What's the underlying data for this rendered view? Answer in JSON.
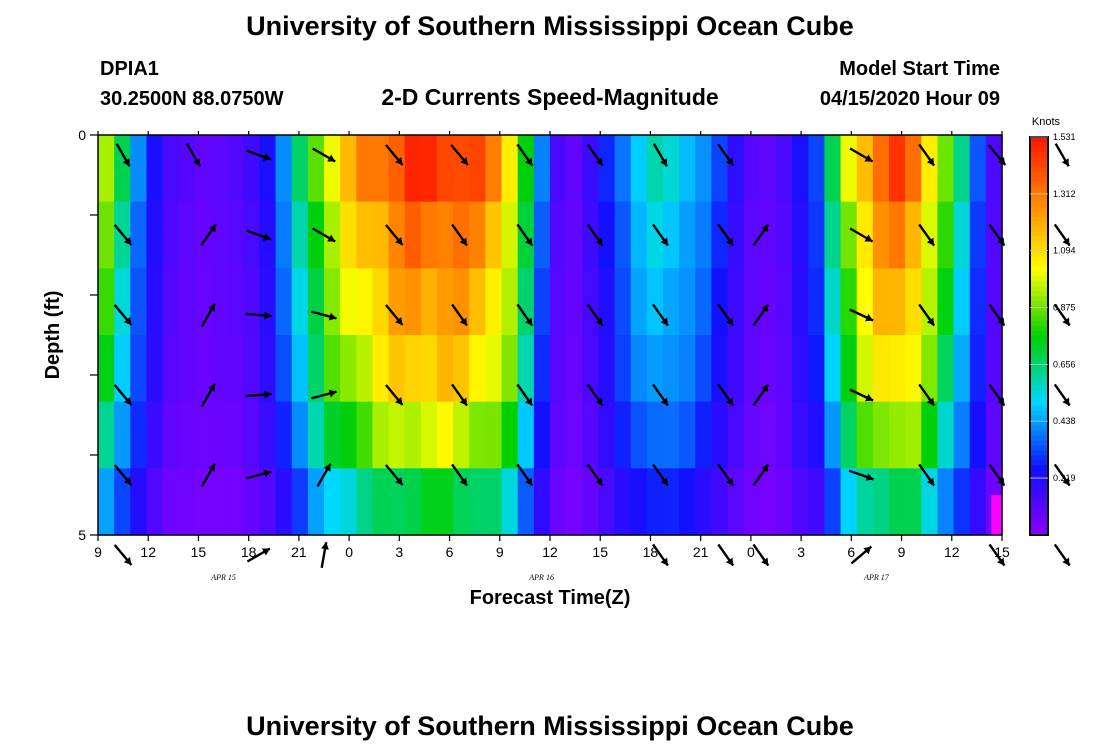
{
  "header": {
    "title": "University of Southern Mississippi Ocean Cube",
    "station_id": "DPIA1",
    "coords": "30.2500N 88.0750W",
    "subtitle": "2-D Currents Speed-Magnitude",
    "model_start_label": "Model Start Time",
    "model_start_value": "04/15/2020 Hour 09"
  },
  "footer": {
    "title": "University of Southern Mississippi Ocean Cube"
  },
  "colors": {
    "scale": [
      "#8a00ff",
      "#1010ff",
      "#00d8ff",
      "#00d000",
      "#ffff00",
      "#ff8800",
      "#ff1500"
    ],
    "max_marker": "#ff00ff",
    "arrow": "#000000"
  },
  "chart_data": {
    "type": "heatmap",
    "title": "2-D Currents Speed-Magnitude",
    "xlabel": "Forecast Time(Z)",
    "ylabel": "Depth (ft)",
    "x_ticks": [
      "9",
      "12",
      "15",
      "18",
      "21",
      "0",
      "3",
      "6",
      "9",
      "12",
      "15",
      "18",
      "21",
      "0",
      "3",
      "6",
      "9",
      "12",
      "15"
    ],
    "x_range_hours": [
      0,
      54
    ],
    "y_ticks": [
      "0",
      "5"
    ],
    "y_range": [
      0,
      5
    ],
    "date_labels": [
      {
        "text": "APR  15",
        "hour": 7.5
      },
      {
        "text": "APR  16",
        "hour": 26.5
      },
      {
        "text": "APR  17",
        "hour": 46.5
      }
    ],
    "colorbar": {
      "units": "Knots",
      "min": 0.0,
      "max": 1.531,
      "ticks": [
        "1.531",
        "1.312",
        "1.094",
        "0.875",
        "0.656",
        "0.438",
        "0.219"
      ]
    },
    "speed_profile": [
      0.85,
      0.6,
      0.38,
      0.22,
      0.12,
      0.1,
      0.08,
      0.09,
      0.1,
      0.14,
      0.22,
      0.38,
      0.58,
      0.78,
      0.95,
      1.05,
      1.15,
      1.22,
      1.28,
      1.32,
      1.33,
      1.34,
      1.3,
      1.25,
      1.18,
      1.0,
      0.68,
      0.35,
      0.12,
      0.08,
      0.15,
      0.25,
      0.36,
      0.46,
      0.52,
      0.5,
      0.45,
      0.38,
      0.28,
      0.18,
      0.1,
      0.08,
      0.12,
      0.22,
      0.3,
      0.6,
      0.9,
      1.1,
      1.22,
      1.28,
      1.22,
      1.0,
      0.78,
      0.55,
      0.32,
      0.12
    ],
    "depth_factors": [
      1.1,
      1.0,
      0.93,
      0.86,
      0.74,
      0.54
    ],
    "arrows": [
      [
        [
          0.3,
          0.3,
          300
        ],
        [
          1.7,
          0.3,
          300
        ],
        [
          3.0,
          0.3,
          340
        ],
        [
          4.3,
          0.3,
          330
        ],
        [
          5.7,
          0.3,
          310
        ],
        [
          7.0,
          0.3,
          310
        ],
        [
          8.3,
          0.3,
          305
        ],
        [
          9.7,
          0.3,
          305
        ],
        [
          11.0,
          0.3,
          300
        ],
        [
          12.3,
          0.3,
          305
        ],
        [
          15.0,
          0.3,
          330
        ],
        [
          16.3,
          0.3,
          305
        ],
        [
          17.7,
          0.3,
          310
        ],
        [
          19.0,
          0.3,
          300
        ]
      ],
      [
        [
          0.3,
          1.3,
          310
        ],
        [
          2.0,
          1.3,
          55
        ],
        [
          3.0,
          1.3,
          340
        ],
        [
          4.3,
          1.3,
          330
        ],
        [
          5.7,
          1.3,
          310
        ],
        [
          7.0,
          1.3,
          305
        ],
        [
          8.3,
          1.3,
          305
        ],
        [
          9.7,
          1.3,
          305
        ],
        [
          11.0,
          1.3,
          305
        ],
        [
          12.3,
          1.3,
          305
        ],
        [
          13.0,
          1.3,
          55
        ],
        [
          15.0,
          1.3,
          330
        ],
        [
          16.3,
          1.3,
          305
        ],
        [
          17.7,
          1.3,
          305
        ],
        [
          19.0,
          1.3,
          305
        ]
      ],
      [
        [
          0.3,
          2.3,
          310
        ],
        [
          2.0,
          2.3,
          60
        ],
        [
          3.0,
          2.3,
          355
        ],
        [
          4.3,
          2.3,
          345
        ],
        [
          5.7,
          2.3,
          310
        ],
        [
          7.0,
          2.3,
          305
        ],
        [
          8.3,
          2.3,
          305
        ],
        [
          9.7,
          2.3,
          305
        ],
        [
          11.0,
          2.3,
          305
        ],
        [
          12.3,
          2.3,
          305
        ],
        [
          13.0,
          2.3,
          55
        ],
        [
          15.0,
          2.3,
          335
        ],
        [
          16.3,
          2.3,
          305
        ],
        [
          17.7,
          2.3,
          305
        ],
        [
          19.0,
          2.3,
          305
        ]
      ],
      [
        [
          0.3,
          3.3,
          310
        ],
        [
          2.0,
          3.3,
          60
        ],
        [
          3.0,
          3.3,
          5
        ],
        [
          4.3,
          3.3,
          15
        ],
        [
          5.7,
          3.3,
          310
        ],
        [
          7.0,
          3.3,
          305
        ],
        [
          8.3,
          3.3,
          305
        ],
        [
          9.7,
          3.3,
          305
        ],
        [
          11.0,
          3.3,
          305
        ],
        [
          12.3,
          3.3,
          305
        ],
        [
          13.0,
          3.3,
          55
        ],
        [
          15.0,
          3.3,
          335
        ],
        [
          16.3,
          3.3,
          305
        ],
        [
          17.7,
          3.3,
          305
        ],
        [
          19.0,
          3.3,
          305
        ]
      ],
      [
        [
          0.3,
          4.3,
          310
        ],
        [
          2.0,
          4.3,
          60
        ],
        [
          3.0,
          4.3,
          15
        ],
        [
          4.3,
          4.3,
          60
        ],
        [
          5.7,
          4.3,
          310
        ],
        [
          7.0,
          4.3,
          305
        ],
        [
          8.3,
          4.3,
          305
        ],
        [
          9.7,
          4.3,
          305
        ],
        [
          11.0,
          4.3,
          305
        ],
        [
          12.3,
          4.3,
          305
        ],
        [
          13.0,
          4.3,
          55
        ],
        [
          15.0,
          4.3,
          340
        ],
        [
          16.3,
          4.3,
          305
        ],
        [
          17.7,
          4.3,
          305
        ],
        [
          19.0,
          4.3,
          305
        ]
      ],
      [
        [
          0.3,
          5.3,
          310
        ],
        [
          3.0,
          5.3,
          30
        ],
        [
          4.3,
          5.3,
          80
        ],
        [
          11.0,
          5.3,
          305
        ],
        [
          12.3,
          5.3,
          305
        ],
        [
          13.0,
          5.3,
          305
        ],
        [
          15.0,
          5.3,
          40
        ],
        [
          17.7,
          5.3,
          305
        ],
        [
          19.0,
          5.3,
          305
        ]
      ]
    ],
    "max_marker_hour": 53.6,
    "max_marker_depth": 4.5
  }
}
